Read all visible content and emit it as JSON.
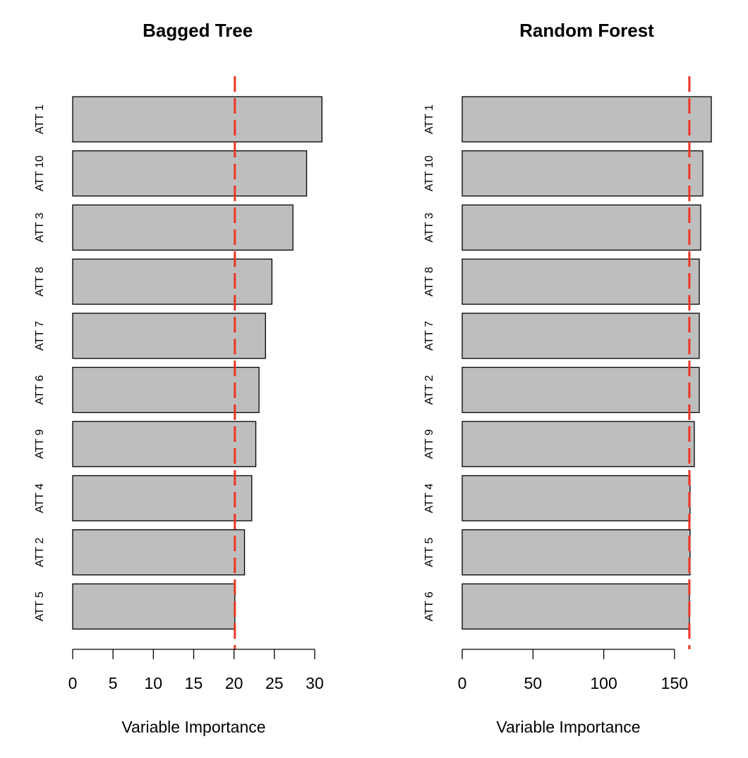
{
  "chart_data": [
    {
      "type": "bar",
      "orientation": "horizontal",
      "title": "Bagged Tree",
      "x_label": "Variable Importance",
      "categories": [
        "ATT 1",
        "ATT 10",
        "ATT 3",
        "ATT 8",
        "ATT 7",
        "ATT 6",
        "ATT 9",
        "ATT 4",
        "ATT 2",
        "ATT 5"
      ],
      "values": [
        30.9,
        29.0,
        27.3,
        24.7,
        23.9,
        23.1,
        22.7,
        22.2,
        21.3,
        20.1
      ],
      "color": "#bebebe",
      "threshold": 20.1,
      "threshold_color": "#ee3322",
      "xlim": [
        0,
        31
      ],
      "xticks": [
        0,
        5,
        10,
        15,
        20,
        25,
        30
      ]
    },
    {
      "type": "bar",
      "orientation": "horizontal",
      "title": "Random Forest",
      "x_label": "Variable Importance",
      "categories": [
        "ATT 1",
        "ATT 10",
        "ATT 3",
        "ATT 8",
        "ATT 7",
        "ATT 2",
        "ATT 9",
        "ATT 4",
        "ATT 5",
        "ATT 6"
      ],
      "values": [
        176,
        170,
        168.5,
        167.5,
        167.5,
        167.5,
        164,
        161,
        161,
        160.5
      ],
      "color": "#bebebe",
      "threshold": 160.5,
      "threshold_color": "#ee3322",
      "xlim": [
        0,
        176
      ],
      "xticks": [
        0,
        50,
        100,
        150
      ]
    }
  ]
}
